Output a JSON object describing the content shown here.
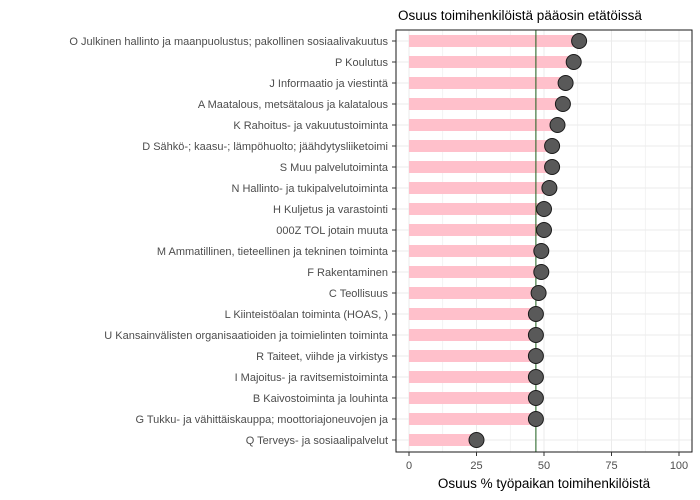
{
  "chart_data": {
    "type": "lollipop",
    "title": "Osuus toimihenkilöistä pääosin etätöissä",
    "xlabel": "Osuus % työpaikan toimihenkilöistä",
    "ylabel": "",
    "xlim": [
      0,
      100
    ],
    "xticks": [
      "0",
      "25",
      "50",
      "75",
      "100"
    ],
    "reference_line": 47,
    "grid": true,
    "colors": {
      "bar": "#ffc0cb",
      "point": "#595959",
      "point_outline": "#1a1a1a",
      "reference_line": "#1a5e1a",
      "panel_border": "#1a1a1a",
      "grid": "#ebebeb"
    },
    "categories": [
      "O Julkinen hallinto ja maanpuolustus; pakollinen sosiaalivakuutus",
      "P Koulutus",
      "J Informaatio ja viestintä",
      "A Maatalous, metsätalous ja kalatalous",
      "K Rahoitus- ja vakuutustoiminta",
      "D Sähkö-; kaasu-; lämpöhuolto; jäähdytysliiketoimi",
      "S Muu palvelutoiminta",
      "N Hallinto- ja tukipalvelutoiminta",
      "H Kuljetus ja varastointi",
      "000Z TOL jotain muuta",
      "M Ammatillinen, tieteellinen ja tekninen toiminta",
      "F Rakentaminen",
      "C Teollisuus",
      "L Kiinteistöalan toiminta (HOAS, )",
      "U Kansainvälisten organisaatioiden ja toimielinten toiminta",
      "R Taiteet, viihde ja virkistys",
      "I Majoitus- ja ravitsemistoiminta",
      "B Kaivostoiminta ja louhinta",
      "G Tukku- ja vähittäiskauppa; moottoriajoneuvojen ja",
      "Q Terveys- ja sosiaalipalvelut"
    ],
    "values": [
      63,
      61,
      58,
      57,
      55,
      53,
      53,
      52,
      50,
      50,
      49,
      49,
      48,
      47,
      47,
      47,
      47,
      47,
      47,
      25
    ]
  }
}
